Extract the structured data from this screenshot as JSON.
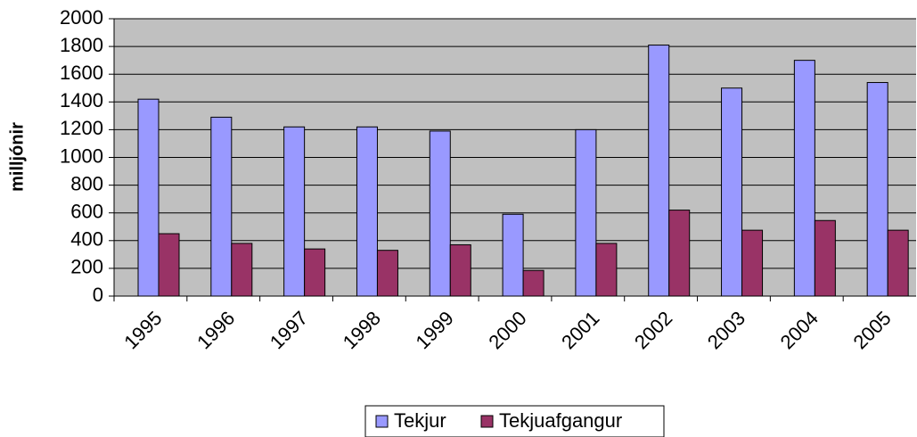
{
  "chart_data": {
    "type": "bar",
    "y_label": "milljónir",
    "categories": [
      "1995",
      "1996",
      "1997",
      "1998",
      "1999",
      "2000",
      "2001",
      "2002",
      "2003",
      "2004",
      "2005"
    ],
    "series": [
      {
        "name": "Tekjur",
        "color": "#9999ff",
        "values": [
          1420,
          1290,
          1220,
          1220,
          1190,
          590,
          1200,
          1810,
          1500,
          1700,
          1540
        ]
      },
      {
        "name": "Tekjuafgangur",
        "color": "#993366",
        "values": [
          450,
          380,
          340,
          330,
          370,
          185,
          380,
          620,
          475,
          545,
          475
        ]
      }
    ],
    "ylim": [
      0,
      2000
    ],
    "yticks": [
      0,
      200,
      400,
      600,
      800,
      1000,
      1200,
      1400,
      1600,
      1800,
      2000
    ],
    "grid": true,
    "legend": "bottom"
  }
}
